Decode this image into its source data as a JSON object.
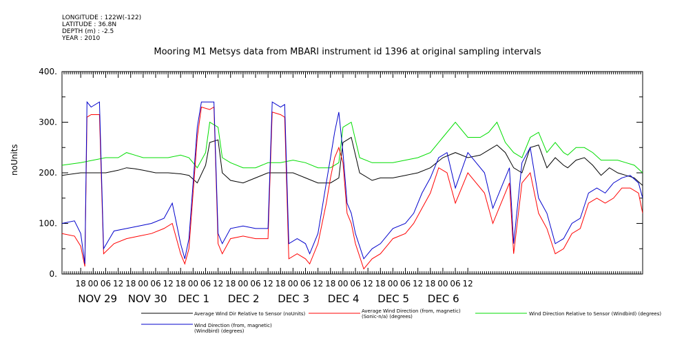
{
  "header": {
    "longitude": "LONGITUDE : 122W(-122)",
    "latitude": "LATITUDE : 36.8N",
    "depth": "DEPTH (m) : -2.5",
    "year": "YEAR : 2010"
  },
  "chart_data": {
    "type": "line",
    "title": "Mooring M1 Metsys data from MBARI instrument id 1396 at original sampling intervals",
    "ylabel": "noUnits",
    "xlabel": "",
    "ylim": [
      0,
      400
    ],
    "yticks": [
      "0.",
      "100.",
      "200.",
      "300.",
      "400."
    ],
    "x_hour_ticks": [
      "18",
      "00",
      "06",
      "12",
      "18",
      "00",
      "06",
      "12",
      "18",
      "00",
      "06",
      "12",
      "18",
      "00",
      "06",
      "12",
      "18",
      "00",
      "06",
      "12",
      "18",
      "00",
      "06",
      "12",
      "18",
      "00",
      "06",
      "12",
      "18",
      "00",
      "06",
      "12"
    ],
    "x_day_labels": [
      "NOV 29",
      "NOV 30",
      "DEC  1",
      "DEC  2",
      "DEC  3",
      "DEC  4",
      "DEC  5",
      "DEC  6"
    ],
    "x_range_hours": [
      -9,
      270
    ],
    "grid": false,
    "legend_position": "bottom",
    "series": [
      {
        "name": "Average Wind Dir Relative to Sensor (noUnits)",
        "color": "#000000",
        "points": [
          [
            -9,
            195
          ],
          [
            0,
            200
          ],
          [
            6,
            200
          ],
          [
            12,
            200
          ],
          [
            18,
            205
          ],
          [
            22,
            210
          ],
          [
            26,
            208
          ],
          [
            30,
            205
          ],
          [
            36,
            200
          ],
          [
            42,
            200
          ],
          [
            48,
            198
          ],
          [
            52,
            195
          ],
          [
            56,
            180
          ],
          [
            60,
            215
          ],
          [
            62,
            260
          ],
          [
            66,
            265
          ],
          [
            68,
            200
          ],
          [
            72,
            185
          ],
          [
            78,
            180
          ],
          [
            84,
            190
          ],
          [
            90,
            200
          ],
          [
            96,
            200
          ],
          [
            102,
            200
          ],
          [
            108,
            190
          ],
          [
            114,
            180
          ],
          [
            120,
            180
          ],
          [
            124,
            190
          ],
          [
            126,
            260
          ],
          [
            130,
            270
          ],
          [
            134,
            200
          ],
          [
            140,
            185
          ],
          [
            144,
            190
          ],
          [
            150,
            190
          ],
          [
            156,
            195
          ],
          [
            162,
            200
          ],
          [
            168,
            210
          ],
          [
            174,
            230
          ],
          [
            180,
            240
          ],
          [
            186,
            230
          ],
          [
            192,
            235
          ],
          [
            196,
            245
          ],
          [
            200,
            255
          ],
          [
            204,
            240
          ],
          [
            208,
            210
          ],
          [
            212,
            200
          ],
          [
            216,
            250
          ],
          [
            220,
            255
          ],
          [
            224,
            210
          ],
          [
            228,
            230
          ],
          [
            232,
            215
          ],
          [
            234,
            210
          ],
          [
            238,
            225
          ],
          [
            242,
            230
          ],
          [
            246,
            215
          ],
          [
            250,
            195
          ],
          [
            254,
            210
          ],
          [
            258,
            200
          ],
          [
            262,
            195
          ],
          [
            266,
            190
          ],
          [
            270,
            175
          ]
        ]
      },
      {
        "name": "Average Wind Direction (from, magnetic) (Sonic-n/a) (degrees)",
        "color": "#ff0000",
        "points": [
          [
            -9,
            80
          ],
          [
            -3,
            75
          ],
          [
            0,
            55
          ],
          [
            2,
            15
          ],
          [
            3,
            310
          ],
          [
            5,
            315
          ],
          [
            9,
            315
          ],
          [
            11,
            40
          ],
          [
            16,
            60
          ],
          [
            22,
            70
          ],
          [
            28,
            75
          ],
          [
            34,
            80
          ],
          [
            40,
            90
          ],
          [
            44,
            100
          ],
          [
            46,
            70
          ],
          [
            48,
            40
          ],
          [
            50,
            20
          ],
          [
            52,
            50
          ],
          [
            56,
            270
          ],
          [
            58,
            330
          ],
          [
            62,
            325
          ],
          [
            64,
            330
          ],
          [
            66,
            60
          ],
          [
            68,
            40
          ],
          [
            72,
            70
          ],
          [
            78,
            75
          ],
          [
            84,
            70
          ],
          [
            90,
            70
          ],
          [
            92,
            320
          ],
          [
            96,
            315
          ],
          [
            98,
            310
          ],
          [
            100,
            30
          ],
          [
            104,
            40
          ],
          [
            108,
            30
          ],
          [
            110,
            20
          ],
          [
            114,
            60
          ],
          [
            118,
            140
          ],
          [
            120,
            190
          ],
          [
            122,
            230
          ],
          [
            124,
            250
          ],
          [
            126,
            220
          ],
          [
            128,
            120
          ],
          [
            130,
            100
          ],
          [
            132,
            60
          ],
          [
            136,
            10
          ],
          [
            140,
            30
          ],
          [
            144,
            40
          ],
          [
            148,
            60
          ],
          [
            150,
            70
          ],
          [
            156,
            80
          ],
          [
            160,
            100
          ],
          [
            164,
            130
          ],
          [
            168,
            160
          ],
          [
            172,
            210
          ],
          [
            176,
            200
          ],
          [
            180,
            140
          ],
          [
            186,
            200
          ],
          [
            190,
            180
          ],
          [
            194,
            160
          ],
          [
            198,
            100
          ],
          [
            202,
            140
          ],
          [
            206,
            180
          ],
          [
            208,
            40
          ],
          [
            212,
            180
          ],
          [
            216,
            200
          ],
          [
            220,
            120
          ],
          [
            224,
            90
          ],
          [
            228,
            40
          ],
          [
            232,
            50
          ],
          [
            236,
            80
          ],
          [
            240,
            90
          ],
          [
            244,
            140
          ],
          [
            248,
            150
          ],
          [
            252,
            140
          ],
          [
            256,
            150
          ],
          [
            260,
            170
          ],
          [
            264,
            170
          ],
          [
            268,
            160
          ],
          [
            270,
            120
          ]
        ]
      },
      {
        "name": "Wind Direction Relative to Sensor (Windbird) (degrees)",
        "color": "#00dd00",
        "points": [
          [
            -9,
            215
          ],
          [
            0,
            220
          ],
          [
            6,
            225
          ],
          [
            12,
            230
          ],
          [
            18,
            230
          ],
          [
            22,
            240
          ],
          [
            26,
            235
          ],
          [
            30,
            230
          ],
          [
            36,
            230
          ],
          [
            42,
            230
          ],
          [
            48,
            235
          ],
          [
            52,
            230
          ],
          [
            56,
            210
          ],
          [
            60,
            240
          ],
          [
            62,
            300
          ],
          [
            66,
            290
          ],
          [
            68,
            230
          ],
          [
            72,
            220
          ],
          [
            78,
            210
          ],
          [
            84,
            210
          ],
          [
            90,
            220
          ],
          [
            96,
            220
          ],
          [
            102,
            225
          ],
          [
            108,
            220
          ],
          [
            114,
            210
          ],
          [
            120,
            210
          ],
          [
            124,
            220
          ],
          [
            126,
            290
          ],
          [
            130,
            300
          ],
          [
            134,
            230
          ],
          [
            140,
            220
          ],
          [
            144,
            220
          ],
          [
            150,
            220
          ],
          [
            156,
            225
          ],
          [
            162,
            230
          ],
          [
            168,
            240
          ],
          [
            174,
            270
          ],
          [
            180,
            300
          ],
          [
            186,
            270
          ],
          [
            192,
            270
          ],
          [
            196,
            280
          ],
          [
            200,
            300
          ],
          [
            204,
            260
          ],
          [
            208,
            240
          ],
          [
            212,
            230
          ],
          [
            216,
            270
          ],
          [
            220,
            280
          ],
          [
            224,
            240
          ],
          [
            228,
            260
          ],
          [
            232,
            240
          ],
          [
            234,
            235
          ],
          [
            238,
            250
          ],
          [
            242,
            250
          ],
          [
            246,
            240
          ],
          [
            250,
            225
          ],
          [
            254,
            225
          ],
          [
            258,
            225
          ],
          [
            262,
            220
          ],
          [
            266,
            215
          ],
          [
            270,
            200
          ]
        ]
      },
      {
        "name": "Wind Direction (from, magnetic) (Windbird) (degrees)",
        "color": "#0000cc",
        "points": [
          [
            -9,
            100
          ],
          [
            -3,
            105
          ],
          [
            0,
            80
          ],
          [
            2,
            20
          ],
          [
            3,
            340
          ],
          [
            5,
            330
          ],
          [
            9,
            340
          ],
          [
            11,
            50
          ],
          [
            16,
            85
          ],
          [
            22,
            90
          ],
          [
            28,
            95
          ],
          [
            34,
            100
          ],
          [
            40,
            110
          ],
          [
            44,
            140
          ],
          [
            46,
            100
          ],
          [
            48,
            60
          ],
          [
            50,
            30
          ],
          [
            52,
            70
          ],
          [
            56,
            290
          ],
          [
            58,
            340
          ],
          [
            62,
            340
          ],
          [
            64,
            340
          ],
          [
            66,
            80
          ],
          [
            68,
            60
          ],
          [
            72,
            90
          ],
          [
            78,
            95
          ],
          [
            84,
            90
          ],
          [
            90,
            90
          ],
          [
            92,
            340
          ],
          [
            96,
            330
          ],
          [
            98,
            335
          ],
          [
            100,
            60
          ],
          [
            104,
            70
          ],
          [
            108,
            60
          ],
          [
            110,
            40
          ],
          [
            114,
            80
          ],
          [
            118,
            180
          ],
          [
            120,
            230
          ],
          [
            122,
            280
          ],
          [
            124,
            320
          ],
          [
            126,
            240
          ],
          [
            128,
            140
          ],
          [
            130,
            120
          ],
          [
            132,
            80
          ],
          [
            136,
            30
          ],
          [
            140,
            50
          ],
          [
            144,
            60
          ],
          [
            148,
            80
          ],
          [
            150,
            90
          ],
          [
            156,
            100
          ],
          [
            160,
            120
          ],
          [
            164,
            160
          ],
          [
            168,
            190
          ],
          [
            172,
            230
          ],
          [
            176,
            240
          ],
          [
            180,
            170
          ],
          [
            186,
            240
          ],
          [
            190,
            220
          ],
          [
            194,
            200
          ],
          [
            198,
            130
          ],
          [
            202,
            170
          ],
          [
            206,
            210
          ],
          [
            208,
            60
          ],
          [
            212,
            220
          ],
          [
            216,
            250
          ],
          [
            220,
            150
          ],
          [
            224,
            120
          ],
          [
            228,
            60
          ],
          [
            232,
            70
          ],
          [
            236,
            100
          ],
          [
            240,
            110
          ],
          [
            244,
            160
          ],
          [
            248,
            170
          ],
          [
            252,
            160
          ],
          [
            256,
            180
          ],
          [
            260,
            190
          ],
          [
            264,
            195
          ],
          [
            268,
            180
          ],
          [
            270,
            150
          ]
        ]
      }
    ]
  }
}
